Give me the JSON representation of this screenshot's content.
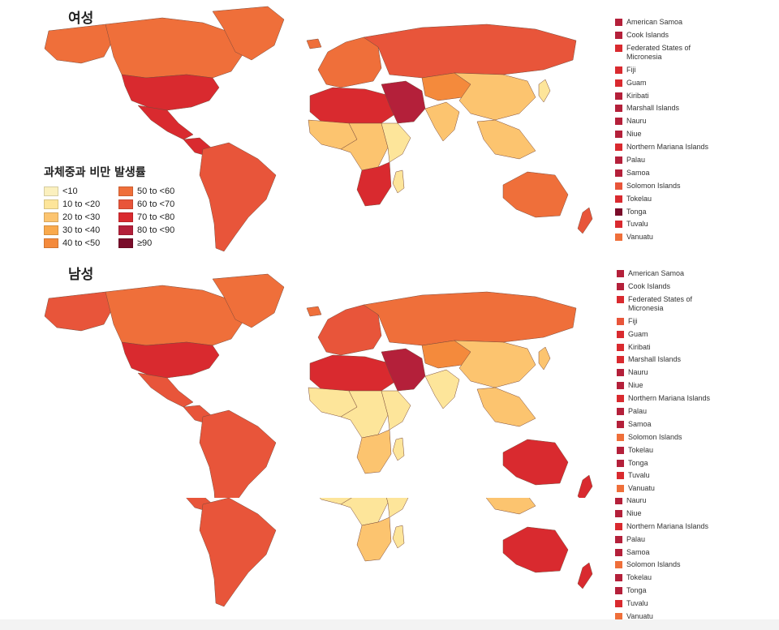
{
  "legend": {
    "title": "과체중과 비만 발생률",
    "items": [
      {
        "label": "<10",
        "color": "#fbf0be"
      },
      {
        "label": "10 to <20",
        "color": "#fde59a"
      },
      {
        "label": "20 to <30",
        "color": "#fcc46f"
      },
      {
        "label": "30 to <40",
        "color": "#f9a94c"
      },
      {
        "label": "40 to <50",
        "color": "#f48a3c"
      },
      {
        "label": "50 to <60",
        "color": "#ef6f3a"
      },
      {
        "label": "60 to <70",
        "color": "#e8553a"
      },
      {
        "label": "70 to <80",
        "color": "#d92a2f"
      },
      {
        "label": "80 to <90",
        "color": "#b4203a"
      },
      {
        "label": "≥90",
        "color": "#7a0c2a"
      }
    ]
  },
  "panels": [
    {
      "title": "여성",
      "islands": [
        {
          "name": "American Samoa",
          "color": "#b4203a"
        },
        {
          "name": "Cook Islands",
          "color": "#b4203a"
        },
        {
          "name": "Federated States of Micronesia",
          "color": "#d92a2f"
        },
        {
          "name": "Fiji",
          "color": "#d92a2f"
        },
        {
          "name": "Guam",
          "color": "#d92a2f"
        },
        {
          "name": "Kiribati",
          "color": "#b4203a"
        },
        {
          "name": "Marshall Islands",
          "color": "#b4203a"
        },
        {
          "name": "Nauru",
          "color": "#b4203a"
        },
        {
          "name": "Niue",
          "color": "#b4203a"
        },
        {
          "name": "Northern Mariana Islands",
          "color": "#d92a2f"
        },
        {
          "name": "Palau",
          "color": "#b4203a"
        },
        {
          "name": "Samoa",
          "color": "#b4203a"
        },
        {
          "name": "Solomon Islands",
          "color": "#e8553a"
        },
        {
          "name": "Tokelau",
          "color": "#d92a2f"
        },
        {
          "name": "Tonga",
          "color": "#7a0c2a"
        },
        {
          "name": "Tuvalu",
          "color": "#d92a2f"
        },
        {
          "name": "Vanuatu",
          "color": "#ef6f3a"
        }
      ],
      "regions": {
        "north_america": "#ef6f3a",
        "alaska": "#ef6f3a",
        "greenland": "#ef6f3a",
        "usa": "#d92a2f",
        "mexico": "#d92a2f",
        "central_america": "#d92a2f",
        "south_america": "#e8553a",
        "iceland": "#ef6f3a",
        "europe": "#ef6f3a",
        "russia": "#e8553a",
        "north_africa": "#d92a2f",
        "middle_east": "#b4203a",
        "west_africa": "#fcc46f",
        "central_africa": "#fcc46f",
        "east_africa": "#fde59a",
        "southern_africa": "#d92a2f",
        "madagascar": "#fde59a",
        "central_asia": "#f48a3c",
        "south_asia": "#fcc46f",
        "china": "#fcc46f",
        "se_asia": "#fcc46f",
        "japan": "#fde59a",
        "australia": "#ef6f3a",
        "new_zealand": "#e8553a"
      }
    },
    {
      "title": "남성",
      "islands": [
        {
          "name": "American Samoa",
          "color": "#b4203a"
        },
        {
          "name": "Cook Islands",
          "color": "#b4203a"
        },
        {
          "name": "Federated States of Micronesia",
          "color": "#d92a2f"
        },
        {
          "name": "Fiji",
          "color": "#e8553a"
        },
        {
          "name": "Guam",
          "color": "#d92a2f"
        },
        {
          "name": "Kiribati",
          "color": "#d92a2f"
        },
        {
          "name": "Marshall Islands",
          "color": "#d92a2f"
        },
        {
          "name": "Nauru",
          "color": "#b4203a"
        },
        {
          "name": "Niue",
          "color": "#b4203a"
        },
        {
          "name": "Northern Mariana Islands",
          "color": "#d92a2f"
        },
        {
          "name": "Palau",
          "color": "#b4203a"
        },
        {
          "name": "Samoa",
          "color": "#b4203a"
        },
        {
          "name": "Solomon Islands",
          "color": "#ef6f3a"
        },
        {
          "name": "Tokelau",
          "color": "#b4203a"
        },
        {
          "name": "Tonga",
          "color": "#b4203a"
        },
        {
          "name": "Tuvalu",
          "color": "#d92a2f"
        },
        {
          "name": "Vanuatu",
          "color": "#ef6f3a"
        }
      ],
      "regions": {
        "north_america": "#ef6f3a",
        "alaska": "#e8553a",
        "greenland": "#ef6f3a",
        "usa": "#d92a2f",
        "mexico": "#e8553a",
        "central_america": "#e8553a",
        "south_america": "#e8553a",
        "iceland": "#ef6f3a",
        "europe": "#e8553a",
        "russia": "#ef6f3a",
        "north_africa": "#d92a2f",
        "middle_east": "#b4203a",
        "west_africa": "#fde59a",
        "central_africa": "#fde59a",
        "east_africa": "#fde59a",
        "southern_africa": "#fcc46f",
        "madagascar": "#fde59a",
        "central_asia": "#f48a3c",
        "south_asia": "#fde59a",
        "china": "#fcc46f",
        "se_asia": "#fcc46f",
        "japan": "#fcc46f",
        "australia": "#d92a2f",
        "new_zealand": "#d92a2f"
      }
    },
    {
      "title": "",
      "islands": [
        {
          "name": "Nauru",
          "color": "#b4203a"
        },
        {
          "name": "Niue",
          "color": "#b4203a"
        },
        {
          "name": "Northern Mariana Islands",
          "color": "#d92a2f"
        },
        {
          "name": "Palau",
          "color": "#b4203a"
        },
        {
          "name": "Samoa",
          "color": "#b4203a"
        },
        {
          "name": "Solomon Islands",
          "color": "#ef6f3a"
        },
        {
          "name": "Tokelau",
          "color": "#b4203a"
        },
        {
          "name": "Tonga",
          "color": "#b4203a"
        },
        {
          "name": "Tuvalu",
          "color": "#d92a2f"
        },
        {
          "name": "Vanuatu",
          "color": "#ef6f3a"
        }
      ],
      "regions": {
        "north_america": "#ef6f3a",
        "alaska": "#e8553a",
        "greenland": "#ef6f3a",
        "usa": "#d92a2f",
        "mexico": "#e8553a",
        "central_america": "#e8553a",
        "south_america": "#e8553a",
        "iceland": "#ef6f3a",
        "europe": "#e8553a",
        "russia": "#ef6f3a",
        "north_africa": "#d92a2f",
        "middle_east": "#b4203a",
        "west_africa": "#fde59a",
        "central_africa": "#fde59a",
        "east_africa": "#fde59a",
        "southern_africa": "#fcc46f",
        "madagascar": "#fde59a",
        "central_asia": "#f48a3c",
        "south_asia": "#fde59a",
        "china": "#fcc46f",
        "se_asia": "#fcc46f",
        "japan": "#fcc46f",
        "australia": "#d92a2f",
        "new_zealand": "#d92a2f"
      }
    }
  ]
}
